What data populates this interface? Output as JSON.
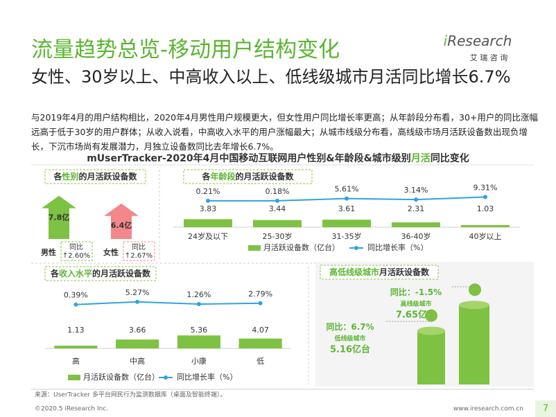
{
  "header": {
    "title": "流量趋势总览-移动用户结构变化",
    "subtitle": "女性、30岁以上、中高收入以上、低线级城市月活同比增长6.7%",
    "logo": [
      "i",
      "Research"
    ],
    "logo_sub": "艾 瑞 咨 询"
  },
  "body": "与2019年4月的用户结构相比，2020年4月男性用户规模更大，但女性用户同比增长率更高；从年龄段分布看，30+用户的同比涨幅远高于低于30岁的用户群体；从收入说看，中高收入水平的用户涨幅最大；从城市线级分布看，高线级市场月活跃设备数出现负增长，下沉市场尚有发展潜力，月独立设备数同比去年增长6.7%。",
  "section_title": [
    "mUserTracker-2020年4月中国移动互联网用户性别&年龄段&城市级别",
    "月活",
    "同比变化"
  ],
  "chart_data": [
    {
      "type": "arrow",
      "title": [
        "各",
        "性别",
        "的月活跃设备数"
      ],
      "categories": [
        "男性",
        "女性"
      ],
      "values": [
        7.8,
        6.4
      ],
      "value_labels": [
        "7.8亿",
        "6.4亿"
      ],
      "colors": [
        "#7dc242",
        "#f4878a"
      ],
      "growth_label": "同比",
      "growth": [
        2.6,
        2.67
      ],
      "growth_labels": [
        "↑2.60%",
        "↑2.67%"
      ]
    },
    {
      "type": "bar-line",
      "title": [
        "各",
        "年龄段",
        "的月活跃设备数"
      ],
      "categories": [
        "24岁及以下",
        "25-30岁",
        "31-35岁",
        "36-40岁",
        "40岁以上"
      ],
      "series": [
        {
          "name": "月活跃设备数（亿台）",
          "color": "#7dc242",
          "values": [
            3.83,
            3.44,
            3.61,
            2.31,
            1.03
          ]
        },
        {
          "name": "同比增长率（%）",
          "color": "#2fa3e0",
          "values": [
            0.21,
            0.18,
            5.61,
            3.14,
            9.31
          ],
          "value_labels": [
            "0.21%",
            "0.18%",
            "5.61%",
            "3.14%",
            "9.31%"
          ]
        }
      ]
    },
    {
      "type": "bar-line",
      "title": [
        "各",
        "收入水平",
        "的月活跃设备数"
      ],
      "categories": [
        "高",
        "中高",
        "小康",
        "低"
      ],
      "series": [
        {
          "name": "月活跃设备数（亿台）",
          "color": "#7dc242",
          "values": [
            1.13,
            3.66,
            5.36,
            4.07
          ]
        },
        {
          "name": "同比增长率（%）",
          "color": "#2fa3e0",
          "values": [
            0.39,
            5.27,
            1.26,
            2.79
          ],
          "value_labels": [
            "0.39%",
            "5.27%",
            "1.26%",
            "2.79%"
          ]
        }
      ]
    },
    {
      "type": "column3d",
      "title": [
        "高低线级城市",
        "月活跃设备数"
      ],
      "categories": [
        "高线级城市",
        "低线级城市"
      ],
      "values": [
        7.65,
        5.16
      ],
      "value_labels": [
        "7.65亿台",
        "5.16亿台"
      ],
      "color": "#7dc242",
      "growth_label": "同比：",
      "growth": [
        -1.5,
        6.7
      ],
      "growth_labels": [
        "-1.5%",
        "6.7%"
      ]
    }
  ],
  "footer": {
    "source": "来源：UserTracker 多平台网民行为监测数据库（桌面及智能终端）。",
    "copyright": "©2020.5 iResearch Inc.",
    "url": "www.iresearch.com.cn",
    "page": "7"
  }
}
